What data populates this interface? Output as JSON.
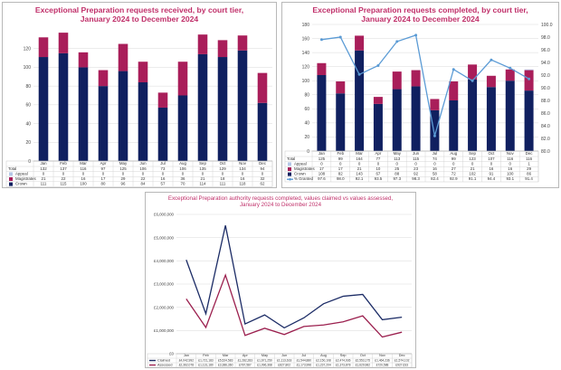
{
  "colors": {
    "appeal": "#b4c7e7",
    "magistrates": "#a91e5a",
    "crown": "#102060",
    "pct_line": "#5b9bd5",
    "claimed": "#1c2c66",
    "assessed": "#9b1f4e",
    "grid": "#d9d9d9",
    "title": "#c0306a"
  },
  "chart_data": [
    {
      "type": "bar",
      "stacked": true,
      "title_line1": "Exceptional Preparation requests received, by court tier,",
      "title_line2": "January 2024 to December 2024",
      "categories": [
        "Jan",
        "Feb",
        "Mar",
        "Apr",
        "May",
        "Jun",
        "Jul",
        "Aug",
        "Sep",
        "Oct",
        "Nov",
        "Dec"
      ],
      "series": [
        {
          "name": "Appeal",
          "values": [
            0,
            0,
            0,
            0,
            0,
            0,
            0,
            0,
            0,
            0,
            0,
            0
          ]
        },
        {
          "name": "Magistrates",
          "values": [
            21,
            22,
            16,
            17,
            29,
            22,
            16,
            36,
            21,
            18,
            16,
            32
          ]
        },
        {
          "name": "Crown",
          "values": [
            111,
            115,
            100,
            80,
            96,
            84,
            57,
            70,
            114,
            111,
            118,
            62
          ]
        }
      ],
      "totals_label": "Total",
      "totals": [
        132,
        137,
        116,
        97,
        125,
        106,
        73,
        106,
        135,
        129,
        134,
        94
      ],
      "ylim": [
        0,
        140
      ],
      "yticks": [
        0,
        20,
        40,
        60,
        80,
        100,
        120
      ],
      "grid": true,
      "legend": "table-below"
    },
    {
      "type": "bar",
      "stacked": true,
      "title_line1": "Exceptional Preparation requests completed, by court tier,",
      "title_line2": "January 2024 to December 2024",
      "categories": [
        "Jan",
        "Feb",
        "Mar",
        "Apr",
        "May",
        "Jun",
        "Jul",
        "Aug",
        "Sep",
        "Oct",
        "Nov",
        "Dec"
      ],
      "series": [
        {
          "name": "Appeal",
          "values": [
            0,
            0,
            0,
            0,
            0,
            0,
            0,
            0,
            0,
            0,
            0,
            1
          ]
        },
        {
          "name": "Magistrates",
          "values": [
            17,
            17,
            21,
            10,
            25,
            23,
            16,
            27,
            21,
            16,
            16,
            29
          ]
        },
        {
          "name": "Crown",
          "values": [
            108,
            82,
            143,
            67,
            88,
            92,
            58,
            72,
            102,
            91,
            100,
            86
          ]
        }
      ],
      "totals_label": "Total",
      "totals": [
        125,
        99,
        164,
        77,
        113,
        115,
        74,
        99,
        123,
        107,
        116,
        116
      ],
      "line_series": {
        "name": "% Granted",
        "values": [
          97.6,
          98.0,
          92.1,
          93.5,
          97.3,
          98.3,
          82.4,
          92.9,
          91.1,
          94.4,
          93.1,
          91.4
        ]
      },
      "line_label": "% Granted",
      "ylim": [
        0,
        180
      ],
      "yticks": [
        0,
        20,
        40,
        60,
        80,
        100,
        120,
        140,
        160,
        180
      ],
      "y2lim": [
        80,
        100
      ],
      "y2ticks": [
        "80.0",
        "82.0",
        "84.0",
        "86.0",
        "88.0",
        "90.0",
        "92.0",
        "94.0",
        "96.0",
        "98.0",
        "100.0"
      ],
      "grid": true,
      "legend": "table-below"
    },
    {
      "type": "line",
      "title_line1": "Exceptional Preparation authority requests completed, values claimed vs values assessed,",
      "title_line2": "January 2024 to December 2024",
      "categories": [
        "Jan",
        "Feb",
        "Mar",
        "Apr",
        "May",
        "Jun",
        "Jul",
        "Aug",
        "Sep",
        "Oct",
        "Nov",
        "Dec"
      ],
      "series": [
        {
          "name": "Claimed",
          "values": [
            4042992,
            1721183,
            5524583,
            1282283,
            1671250,
            1113618,
            1544880,
            2150108,
            2474936,
            2553175,
            1464236,
            1574102
          ]
        },
        {
          "name": "Assessed",
          "values": [
            2362078,
            1131180,
            3386360,
            787587,
            1096368,
            827802,
            1173996,
            1237204,
            1373878,
            1629982,
            720588,
            927633
          ]
        }
      ],
      "table_values": [
        [
          "£4,042,992",
          "£1,721,183",
          "£5,524,583",
          "£1,282,283",
          "£1,671,250",
          "£1,113,618",
          "£1,544,880",
          "£2,150,108",
          "£2,474,936",
          "£2,553,175",
          "£1,464,236",
          "£1,574,102"
        ],
        [
          "£2,362,078",
          "£1,131,180",
          "£3,386,360",
          "£787,587",
          "£1,096,368",
          "£827,802",
          "£1,173,996",
          "£1,237,204",
          "£1,373,878",
          "£1,629,982",
          "£720,588",
          "£927,633"
        ]
      ],
      "ylim": [
        0,
        6000000
      ],
      "yticks": [
        "£0",
        "£1,000,000",
        "£2,000,000",
        "£3,000,000",
        "£4,000,000",
        "£5,000,000",
        "£6,000,000"
      ],
      "grid": true,
      "legend": "table-below"
    }
  ]
}
